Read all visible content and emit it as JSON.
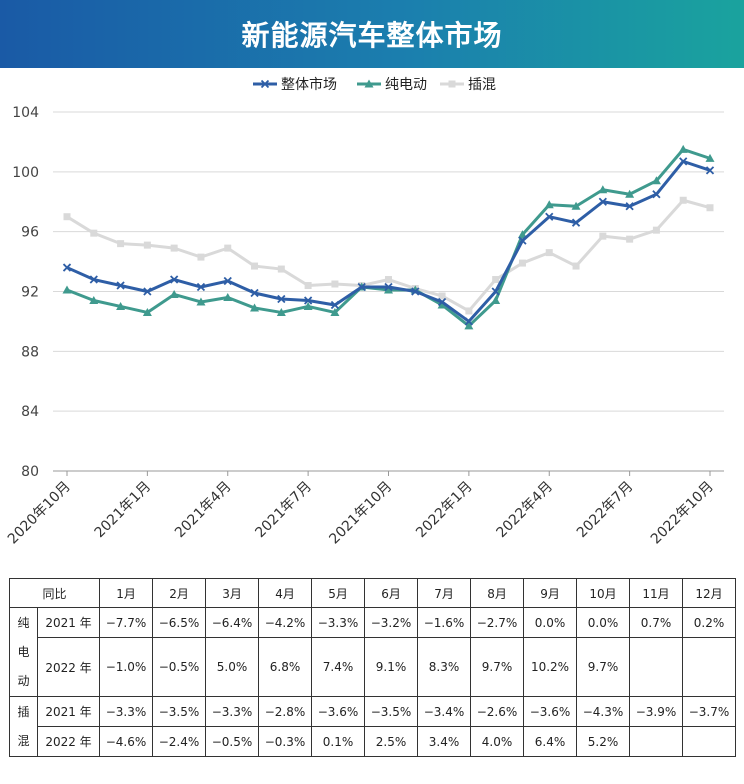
{
  "header": {
    "title": "新能源汽车整体市场"
  },
  "chart_data": {
    "type": "line",
    "title": "新能源汽车整体市场",
    "x": [
      "2020年10月",
      "2020年11月",
      "2020年12月",
      "2021年1月",
      "2021年2月",
      "2021年3月",
      "2021年4月",
      "2021年5月",
      "2021年6月",
      "2021年7月",
      "2021年8月",
      "2021年9月",
      "2021年10月",
      "2021年11月",
      "2021年12月",
      "2022年1月",
      "2022年2月",
      "2022年3月",
      "2022年4月",
      "2022年5月",
      "2022年6月",
      "2022年7月",
      "2022年8月",
      "2022年9月",
      "2022年10月"
    ],
    "xtick_labels": [
      "2020年10月",
      "2021年1月",
      "2021年4月",
      "2021年7月",
      "2021年10月",
      "2022年1月",
      "2022年4月",
      "2022年7月",
      "2022年10月"
    ],
    "ylim": [
      80,
      104
    ],
    "yticks": [
      80,
      84,
      88,
      92,
      96,
      100,
      104
    ],
    "grid": "horizontal",
    "legend_position": "top",
    "series": [
      {
        "name": "整体市场",
        "color": "#2e5ea6",
        "marker": "x",
        "values": [
          93.6,
          92.8,
          92.4,
          92.0,
          92.8,
          92.3,
          92.7,
          91.9,
          91.5,
          91.4,
          91.1,
          92.3,
          92.3,
          92.0,
          91.3,
          90.0,
          92.0,
          95.4,
          97.0,
          96.6,
          98.0,
          97.7,
          98.5,
          100.7,
          100.1
        ]
      },
      {
        "name": "纯电动",
        "color": "#3f9a8e",
        "marker": "triangle",
        "values": [
          92.1,
          91.4,
          91.0,
          90.6,
          91.8,
          91.3,
          91.6,
          90.9,
          90.6,
          91.0,
          90.6,
          92.3,
          92.1,
          92.1,
          91.1,
          89.7,
          91.4,
          95.8,
          97.8,
          97.7,
          98.8,
          98.5,
          99.4,
          101.5,
          100.9
        ]
      },
      {
        "name": "插混",
        "color": "#d9d9d9",
        "marker": "square",
        "values": [
          97.0,
          95.9,
          95.2,
          95.1,
          94.9,
          94.3,
          94.9,
          93.7,
          93.5,
          92.4,
          92.5,
          92.4,
          92.8,
          92.2,
          91.7,
          90.7,
          92.8,
          93.9,
          94.6,
          93.7,
          95.7,
          95.5,
          96.1,
          98.1,
          97.6
        ]
      }
    ]
  },
  "table": {
    "header": [
      "同比",
      "1月",
      "2月",
      "3月",
      "4月",
      "5月",
      "6月",
      "7月",
      "8月",
      "9月",
      "10月",
      "11月",
      "12月"
    ],
    "groups": [
      {
        "label_chars": [
          "纯",
          "电",
          "动"
        ],
        "rows": [
          {
            "year": "2021 年",
            "values": [
              "−7.7%",
              "−6.5%",
              "−6.4%",
              "−4.2%",
              "−3.3%",
              "−3.2%",
              "−1.6%",
              "−2.7%",
              "0.0%",
              "0.0%",
              "0.7%",
              "0.2%"
            ]
          },
          {
            "year": "2022 年",
            "values": [
              "−1.0%",
              "−0.5%",
              "5.0%",
              "6.8%",
              "7.4%",
              "9.1%",
              "8.3%",
              "9.7%",
              "10.2%",
              "9.7%",
              "",
              ""
            ]
          }
        ]
      },
      {
        "label_chars": [
          "插",
          "混"
        ],
        "rows": [
          {
            "year": "2021 年",
            "values": [
              "−3.3%",
              "−3.5%",
              "−3.3%",
              "−2.8%",
              "−3.6%",
              "−3.5%",
              "−3.4%",
              "−2.6%",
              "−3.6%",
              "−4.3%",
              "−3.9%",
              "−3.7%"
            ]
          },
          {
            "year": "2022 年",
            "values": [
              "−4.6%",
              "−2.4%",
              "−0.5%",
              "−0.3%",
              "0.1%",
              "2.5%",
              "3.4%",
              "4.0%",
              "6.4%",
              "5.2%",
              "",
              ""
            ]
          }
        ]
      }
    ]
  }
}
